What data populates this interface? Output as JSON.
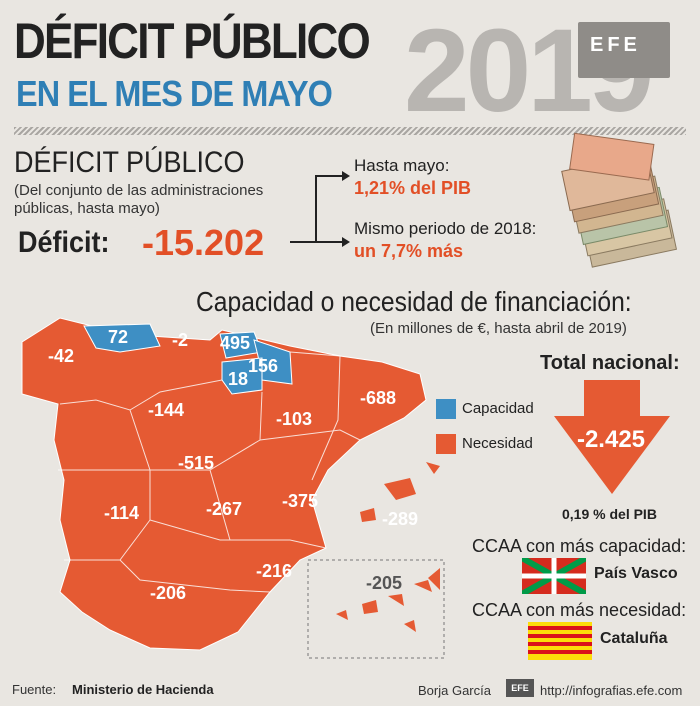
{
  "header": {
    "title_line1": "DÉFICIT PÚBLICO",
    "title_line2": "EN EL MES DE MAYO",
    "year": "2019",
    "agency_logo": "EFE"
  },
  "deficit_section": {
    "title": "DÉFICIT PÚBLICO",
    "note_line1": "(Del conjunto de las administraciones",
    "note_line2": "públicas, hasta mayo)",
    "deficit_label": "Déficit:",
    "deficit_value": "-15.202",
    "may_label": "Hasta mayo:",
    "may_value": "1,21% del PIB",
    "prev_label": "Mismo periodo de 2018:",
    "prev_value": "un 7,7% más"
  },
  "financing": {
    "title": "Capacidad o necesidad de financiación:",
    "note": "(En millones de €, hasta abril de 2019)",
    "legend": [
      {
        "label": "Capacidad",
        "color": "#3e8fc4"
      },
      {
        "label": "Necesidad",
        "color": "#e55a33"
      }
    ],
    "total_label": "Total nacional:",
    "total_value": "-2.425",
    "total_pib": "0,19 % del PIB",
    "most_capacity_title": "CCAA con más capacidad:",
    "most_capacity_region": "País Vasco",
    "most_need_title": "CCAA con más necesidad:",
    "most_need_region": "Cataluña"
  },
  "regions": [
    {
      "value": "-42",
      "type": "necesidad"
    },
    {
      "value": "72",
      "type": "capacidad"
    },
    {
      "value": "-2",
      "type": "necesidad"
    },
    {
      "value": "495",
      "type": "capacidad"
    },
    {
      "value": "156",
      "type": "capacidad"
    },
    {
      "value": "18",
      "type": "capacidad"
    },
    {
      "value": "-144",
      "type": "necesidad"
    },
    {
      "value": "-103",
      "type": "necesidad"
    },
    {
      "value": "-688",
      "type": "necesidad"
    },
    {
      "value": "-515",
      "type": "necesidad"
    },
    {
      "value": "-114",
      "type": "necesidad"
    },
    {
      "value": "-267",
      "type": "necesidad"
    },
    {
      "value": "-375",
      "type": "necesidad"
    },
    {
      "value": "-289",
      "type": "necesidad"
    },
    {
      "value": "-216",
      "type": "necesidad"
    },
    {
      "value": "-206",
      "type": "necesidad"
    },
    {
      "value": "-205",
      "type": "necesidad"
    }
  ],
  "colors": {
    "capacidad": "#3e8fc4",
    "necesidad": "#e55a33",
    "accent_text": "#e24f26",
    "title_blue": "#2f7fb5"
  },
  "footer": {
    "source_prefix": "Fuente:",
    "source_value": "Ministerio de Hacienda",
    "author": "Borja García",
    "website": "http://infografias.efe.com"
  }
}
